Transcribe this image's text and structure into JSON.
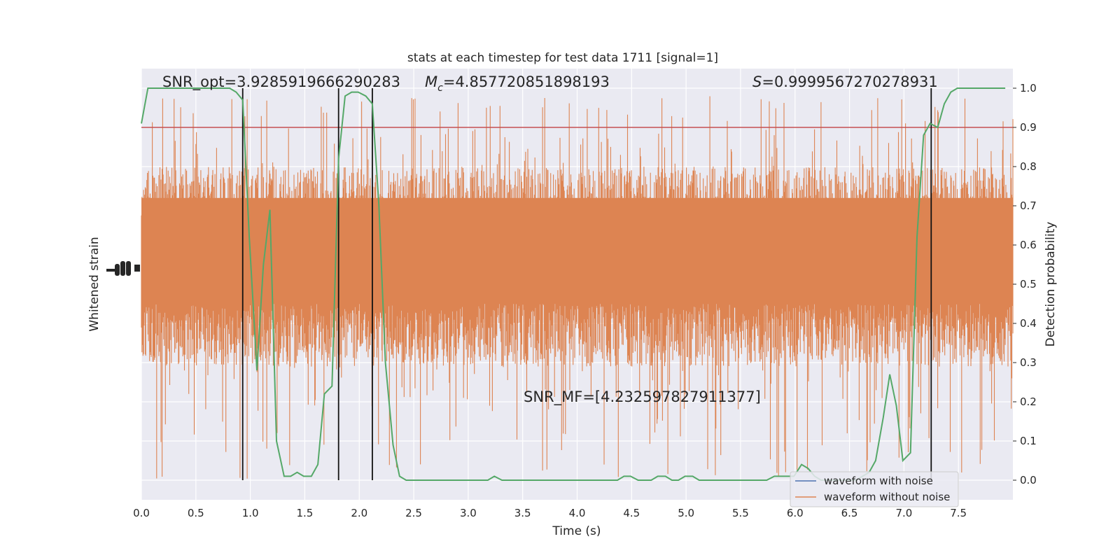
{
  "chart_data": {
    "type": "line",
    "title": "stats at each timestep for test data 1711 [signal=1]",
    "xlabel": "Time (s)",
    "ylabel_left": "Whitened strain",
    "ylabel_right": "Detection probability",
    "xlim": [
      0.0,
      8.0
    ],
    "ylim_right": [
      -0.05,
      1.05
    ],
    "grid": true,
    "legend_position": "lower-right",
    "x_tick_labels": [
      "0.0",
      "0.5",
      "1.0",
      "1.5",
      "2.0",
      "2.5",
      "3.0",
      "3.5",
      "4.0",
      "4.5",
      "5.0",
      "5.5",
      "6.0",
      "6.5",
      "7.0",
      "7.5"
    ],
    "y_tick_labels_right": [
      "0.0",
      "0.1",
      "0.2",
      "0.3",
      "0.4",
      "0.5",
      "0.6",
      "0.7",
      "0.8",
      "0.9",
      "1.0"
    ],
    "annotations": {
      "snr_opt": "SNR_opt=3.9285919666290283",
      "mc_symbol": "M",
      "mc_subscript": "c",
      "mc_value": "=4.857720851898193",
      "s_symbol": "S",
      "s_value": "=0.9999567270278931",
      "snr_mf": "SNR_MF=[4.232597827911377]"
    },
    "threshold": 0.9,
    "event_lines_x": [
      0.93,
      1.81,
      2.12,
      7.25
    ],
    "series": [
      {
        "name": "waveform with noise",
        "color": "#4c72b0",
        "x": [],
        "y": []
      },
      {
        "name": "waveform without noise",
        "color": "#dd8452",
        "band": [
          0.29,
          0.82
        ],
        "spike_range": [
          0.0,
          0.98
        ]
      },
      {
        "color": "#55a868",
        "x": [
          0.0,
          0.06,
          0.12,
          0.19,
          0.25,
          0.31,
          0.37,
          0.44,
          0.5,
          0.56,
          0.62,
          0.69,
          0.75,
          0.81,
          0.87,
          0.93,
          0.99,
          1.06,
          1.12,
          1.18,
          1.24,
          1.31,
          1.37,
          1.43,
          1.49,
          1.56,
          1.62,
          1.68,
          1.75,
          1.81,
          1.87,
          1.93,
          1.99,
          2.06,
          2.12,
          2.18,
          2.24,
          2.31,
          2.37,
          2.43,
          2.49,
          2.56,
          2.62,
          2.68,
          2.75,
          2.81,
          2.87,
          2.93,
          2.99,
          3.06,
          3.12,
          3.18,
          3.24,
          3.31,
          3.37,
          3.43,
          3.49,
          3.56,
          3.62,
          3.68,
          3.75,
          3.81,
          3.87,
          3.93,
          3.99,
          4.06,
          4.12,
          4.18,
          4.24,
          4.31,
          4.37,
          4.43,
          4.49,
          4.56,
          4.62,
          4.68,
          4.74,
          4.81,
          4.87,
          4.93,
          4.99,
          5.06,
          5.12,
          5.18,
          5.24,
          5.31,
          5.37,
          5.43,
          5.49,
          5.56,
          5.62,
          5.68,
          5.74,
          5.81,
          5.87,
          5.93,
          5.99,
          6.06,
          6.12,
          6.18,
          6.24,
          6.31,
          6.37,
          6.43,
          6.49,
          6.56,
          6.62,
          6.68,
          6.74,
          6.81,
          6.87,
          6.93,
          6.99,
          7.06,
          7.12,
          7.18,
          7.24,
          7.31,
          7.37,
          7.43,
          7.49,
          7.56,
          7.62,
          7.68,
          7.74,
          7.81,
          7.87,
          7.93
        ],
        "y": [
          0.91,
          1.0,
          1.0,
          1.0,
          1.0,
          1.0,
          1.0,
          1.0,
          1.0,
          1.0,
          1.0,
          1.0,
          1.0,
          1.0,
          0.99,
          0.97,
          0.62,
          0.28,
          0.55,
          0.69,
          0.1,
          0.01,
          0.01,
          0.02,
          0.01,
          0.01,
          0.04,
          0.22,
          0.24,
          0.82,
          0.98,
          0.99,
          0.99,
          0.98,
          0.96,
          0.7,
          0.3,
          0.09,
          0.01,
          0.0,
          0.0,
          0.0,
          0.0,
          0.0,
          0.0,
          0.0,
          0.0,
          0.0,
          0.0,
          0.0,
          0.0,
          0.0,
          0.01,
          0.0,
          0.0,
          0.0,
          0.0,
          0.0,
          0.0,
          0.0,
          0.0,
          0.0,
          0.0,
          0.0,
          0.0,
          0.0,
          0.0,
          0.0,
          0.0,
          0.0,
          0.0,
          0.01,
          0.01,
          0.0,
          0.0,
          0.0,
          0.01,
          0.01,
          0.0,
          0.0,
          0.01,
          0.01,
          0.0,
          0.0,
          0.0,
          0.0,
          0.0,
          0.0,
          0.0,
          0.0,
          0.0,
          0.0,
          0.0,
          0.01,
          0.01,
          0.01,
          0.01,
          0.04,
          0.03,
          0.01,
          0.0,
          0.0,
          0.0,
          0.0,
          0.0,
          0.0,
          0.01,
          0.02,
          0.05,
          0.16,
          0.27,
          0.19,
          0.05,
          0.07,
          0.62,
          0.88,
          0.91,
          0.9,
          0.96,
          0.99,
          1.0,
          1.0,
          1.0,
          1.0,
          1.0,
          1.0,
          1.0,
          1.0
        ]
      }
    ]
  }
}
